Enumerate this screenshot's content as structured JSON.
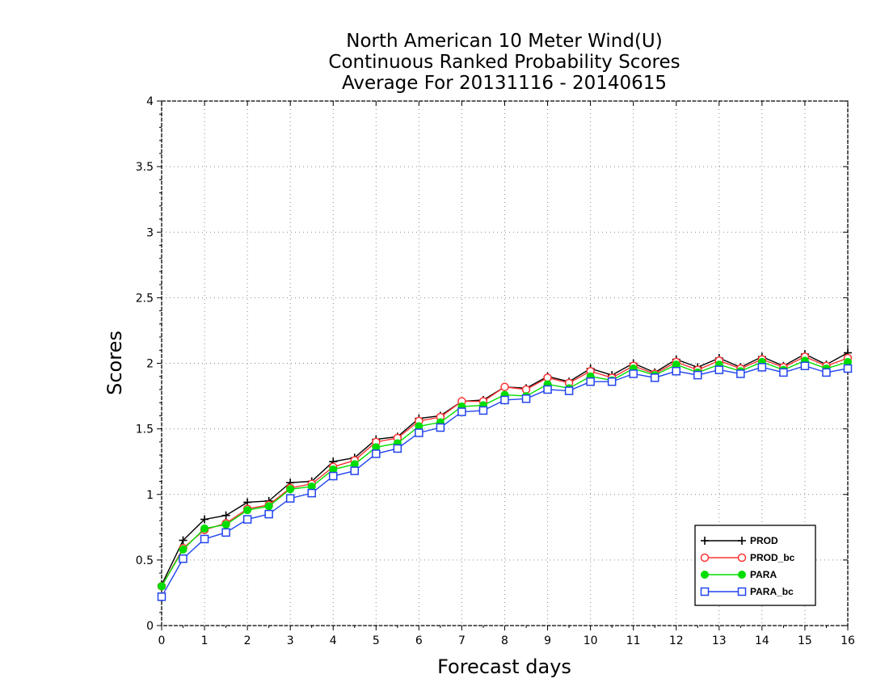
{
  "chart_data": {
    "type": "line",
    "title": [
      "North American 10 Meter Wind(U)",
      "Continuous Ranked Probability Scores",
      "Average For 20131116 - 20140615"
    ],
    "xlabel": "Forecast days",
    "ylabel": "Scores",
    "xlim": [
      0,
      16
    ],
    "ylim": [
      0,
      4
    ],
    "xticks": [
      "0",
      "1",
      "2",
      "3",
      "4",
      "5",
      "6",
      "7",
      "8",
      "9",
      "10",
      "11",
      "12",
      "13",
      "14",
      "15",
      "16"
    ],
    "yticks": [
      "0",
      "0.5",
      "1",
      "1.5",
      "2",
      "2.5",
      "3",
      "3.5",
      "4"
    ],
    "grid": true,
    "legend_position": "bottom-right",
    "x": [
      0,
      0.5,
      1,
      1.5,
      2,
      2.5,
      3,
      3.5,
      4,
      4.5,
      5,
      5.5,
      6,
      6.5,
      7,
      7.5,
      8,
      8.5,
      9,
      9.5,
      10,
      10.5,
      11,
      11.5,
      12,
      12.5,
      13,
      13.5,
      14,
      14.5,
      15,
      15.5,
      16
    ],
    "series": [
      {
        "name": "PROD",
        "color": "#000000",
        "marker": "plus",
        "values": [
          0.31,
          0.65,
          0.81,
          0.84,
          0.94,
          0.95,
          1.09,
          1.1,
          1.25,
          1.28,
          1.42,
          1.44,
          1.58,
          1.6,
          1.71,
          1.72,
          1.82,
          1.81,
          1.9,
          1.86,
          1.96,
          1.91,
          2.0,
          1.93,
          2.03,
          1.97,
          2.04,
          1.97,
          2.05,
          1.98,
          2.07,
          1.99,
          2.08
        ]
      },
      {
        "name": "PROD_bc",
        "color": "#ff3333",
        "marker": "circle-open",
        "values": [
          0.3,
          0.59,
          0.73,
          0.78,
          0.89,
          0.92,
          1.05,
          1.08,
          1.21,
          1.26,
          1.4,
          1.43,
          1.56,
          1.59,
          1.71,
          1.71,
          1.82,
          1.8,
          1.89,
          1.85,
          1.94,
          1.89,
          1.98,
          1.92,
          2.01,
          1.95,
          2.02,
          1.96,
          2.03,
          1.97,
          2.05,
          1.98,
          2.04
        ]
      },
      {
        "name": "PARA",
        "color": "#00dd00",
        "marker": "circle-filled",
        "values": [
          0.3,
          0.58,
          0.74,
          0.77,
          0.88,
          0.91,
          1.04,
          1.06,
          1.19,
          1.23,
          1.36,
          1.39,
          1.52,
          1.55,
          1.67,
          1.68,
          1.76,
          1.75,
          1.84,
          1.81,
          1.9,
          1.87,
          1.96,
          1.91,
          1.99,
          1.93,
          1.99,
          1.94,
          2.01,
          1.95,
          2.02,
          1.96,
          2.01
        ]
      },
      {
        "name": "PARA_bc",
        "color": "#2244ee",
        "marker": "square-open",
        "values": [
          0.22,
          0.51,
          0.66,
          0.71,
          0.81,
          0.85,
          0.97,
          1.01,
          1.14,
          1.18,
          1.31,
          1.35,
          1.47,
          1.51,
          1.63,
          1.64,
          1.72,
          1.73,
          1.8,
          1.79,
          1.86,
          1.86,
          1.92,
          1.89,
          1.94,
          1.91,
          1.95,
          1.92,
          1.97,
          1.93,
          1.98,
          1.93,
          1.96
        ]
      }
    ]
  }
}
